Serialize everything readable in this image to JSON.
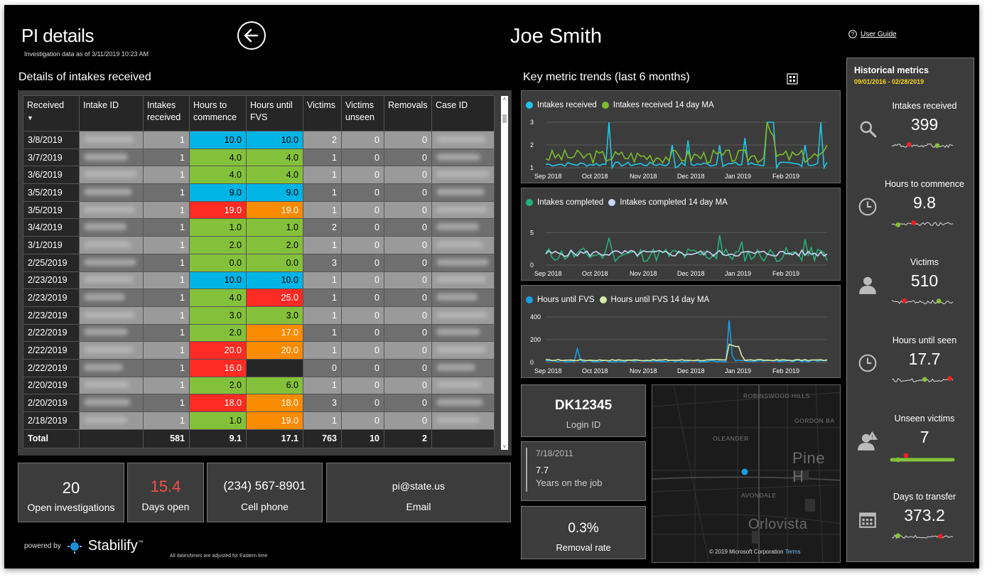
{
  "header": {
    "title": "PI details",
    "as_of": "Investigation data as of 3/11/2019 10:23 AM",
    "person": "Joe Smith",
    "user_guide": "User Guide"
  },
  "table_section": {
    "title": "Details of intakes received",
    "columns": [
      "Received",
      "Intake ID",
      "Intakes received",
      "Hours to commence",
      "Hours until FVS",
      "Victims",
      "Victims unseen",
      "Removals",
      "Case ID"
    ],
    "rows": [
      {
        "date": "3/8/2019",
        "intakes": "1",
        "htc": "10.0",
        "htc_c": "blue",
        "hfvs": "10.0",
        "hfvs_c": "blue",
        "victims": "2",
        "unseen": "0",
        "removals": "0"
      },
      {
        "date": "3/7/2019",
        "intakes": "1",
        "htc": "4.0",
        "htc_c": "green",
        "hfvs": "4.0",
        "hfvs_c": "green",
        "victims": "1",
        "unseen": "0",
        "removals": "0"
      },
      {
        "date": "3/6/2019",
        "intakes": "1",
        "htc": "4.0",
        "htc_c": "green",
        "hfvs": "4.0",
        "hfvs_c": "green",
        "victims": "1",
        "unseen": "0",
        "removals": "0"
      },
      {
        "date": "3/5/2019",
        "intakes": "1",
        "htc": "9.0",
        "htc_c": "blue",
        "hfvs": "9.0",
        "hfvs_c": "blue",
        "victims": "1",
        "unseen": "0",
        "removals": "0"
      },
      {
        "date": "3/5/2019",
        "intakes": "1",
        "htc": "19.0",
        "htc_c": "red",
        "hfvs": "19.0",
        "hfvs_c": "orange",
        "victims": "1",
        "unseen": "0",
        "removals": "0"
      },
      {
        "date": "3/4/2019",
        "intakes": "1",
        "htc": "1.0",
        "htc_c": "green",
        "hfvs": "1.0",
        "hfvs_c": "green",
        "victims": "2",
        "unseen": "0",
        "removals": "0"
      },
      {
        "date": "3/1/2019",
        "intakes": "1",
        "htc": "2.0",
        "htc_c": "green",
        "hfvs": "2.0",
        "hfvs_c": "green",
        "victims": "1",
        "unseen": "0",
        "removals": "0"
      },
      {
        "date": "2/25/2019",
        "intakes": "1",
        "htc": "0.0",
        "htc_c": "green",
        "hfvs": "0.0",
        "hfvs_c": "green",
        "victims": "3",
        "unseen": "0",
        "removals": "0"
      },
      {
        "date": "2/23/2019",
        "intakes": "1",
        "htc": "10.0",
        "htc_c": "blue",
        "hfvs": "10.0",
        "hfvs_c": "blue",
        "victims": "1",
        "unseen": "0",
        "removals": "0"
      },
      {
        "date": "2/23/2019",
        "intakes": "1",
        "htc": "4.0",
        "htc_c": "green",
        "hfvs": "25.0",
        "hfvs_c": "red",
        "victims": "1",
        "unseen": "0",
        "removals": "0"
      },
      {
        "date": "2/23/2019",
        "intakes": "1",
        "htc": "3.0",
        "htc_c": "green",
        "hfvs": "3.0",
        "hfvs_c": "green",
        "victims": "1",
        "unseen": "0",
        "removals": "0"
      },
      {
        "date": "2/22/2019",
        "intakes": "1",
        "htc": "2.0",
        "htc_c": "green",
        "hfvs": "17.0",
        "hfvs_c": "orange",
        "victims": "1",
        "unseen": "0",
        "removals": "0"
      },
      {
        "date": "2/22/2019",
        "intakes": "1",
        "htc": "20.0",
        "htc_c": "red",
        "hfvs": "20.0",
        "hfvs_c": "orange",
        "victims": "1",
        "unseen": "0",
        "removals": "0"
      },
      {
        "date": "2/22/2019",
        "intakes": "1",
        "htc": "16.0",
        "htc_c": "red",
        "hfvs": "",
        "hfvs_c": "empty",
        "victims": "0",
        "unseen": "0",
        "removals": "0"
      },
      {
        "date": "2/20/2019",
        "intakes": "1",
        "htc": "2.0",
        "htc_c": "green",
        "hfvs": "6.0",
        "hfvs_c": "green",
        "victims": "1",
        "unseen": "0",
        "removals": "0"
      },
      {
        "date": "2/20/2019",
        "intakes": "1",
        "htc": "18.0",
        "htc_c": "red",
        "hfvs": "18.0",
        "hfvs_c": "orange",
        "victims": "3",
        "unseen": "0",
        "removals": "0"
      },
      {
        "date": "2/18/2019",
        "intakes": "1",
        "htc": "1.0",
        "htc_c": "green",
        "hfvs": "19.0",
        "hfvs_c": "orange",
        "victims": "1",
        "unseen": "0",
        "removals": "0"
      }
    ],
    "total": {
      "label": "Total",
      "intakes": "581",
      "htc": "9.1",
      "hfvs": "17.1",
      "victims": "763",
      "unseen": "10",
      "removals": "2"
    }
  },
  "cards": {
    "open_investigations": {
      "value": "20",
      "label": "Open investigations"
    },
    "days_open": {
      "value": "15.4",
      "label": "Days open",
      "color": "#f0524a"
    },
    "cell_phone": {
      "value": "(234) 567-8901",
      "label": "Cell phone"
    },
    "email": {
      "value": "pi@state.us",
      "label": "Email"
    },
    "login": {
      "value": "DK12345",
      "label": "Login ID"
    },
    "tenure": {
      "date": "7/18/2011",
      "value": "7.7",
      "label": "Years on the job"
    },
    "removal_rate": {
      "value": "0.3%",
      "label": "Removal rate"
    }
  },
  "trends": {
    "title": "Key metric trends (last 6 months)",
    "months": [
      "Sep 2018",
      "Oct 2018",
      "Nov 2018",
      "Dec 2018",
      "Jan 2019",
      "Feb 2019"
    ],
    "charts": [
      {
        "series": [
          "Intakes received",
          "Intakes received 14 day MA"
        ],
        "colors": [
          "#22c5e8",
          "#7dbb2a"
        ],
        "y_ticks": [
          "3",
          "2",
          "1"
        ],
        "ylim": [
          1,
          3
        ]
      },
      {
        "series": [
          "Intakes completed",
          "Intakes completed 14 day MA"
        ],
        "colors": [
          "#27b07a",
          "#c7d7f5"
        ],
        "y_ticks": [
          "5",
          "0"
        ],
        "ylim": [
          0,
          7
        ]
      },
      {
        "series": [
          "Hours until FVS",
          "Hours until FVS 14 day MA"
        ],
        "colors": [
          "#1a9fe0",
          "#d6ecaa"
        ],
        "y_ticks": [
          "400",
          "200",
          "0"
        ],
        "ylim": [
          0,
          400
        ]
      }
    ]
  },
  "map": {
    "labels": [
      "ROBINSWOOD HILLS",
      "GORDON BA",
      "OLEANDER",
      "Pine H",
      "AVONDALE",
      "Orlovista"
    ],
    "copyright": "© 2019 Microsoft Corporation",
    "terms": "Terms"
  },
  "historical": {
    "title": "Historical metrics",
    "range": "09/01/2016 - 02/28/2019",
    "metrics": [
      {
        "label": "Intakes received",
        "value": "399",
        "icon": "search-icon"
      },
      {
        "label": "Hours to commence",
        "value": "9.8",
        "icon": "clock-icon"
      },
      {
        "label": "Victims",
        "value": "510",
        "icon": "person-icon"
      },
      {
        "label": "Hours until seen",
        "value": "17.7",
        "icon": "clock-icon"
      },
      {
        "label": "Unseen victims",
        "value": "7",
        "icon": "person-warning-icon"
      },
      {
        "label": "Days to transfer",
        "value": "373.2",
        "icon": "calendar-icon"
      }
    ]
  },
  "footer": {
    "powered_by": "powered by",
    "brand": "Stabilify",
    "tm": "™",
    "note": "All dates/times are adjusted for Eastern time"
  }
}
